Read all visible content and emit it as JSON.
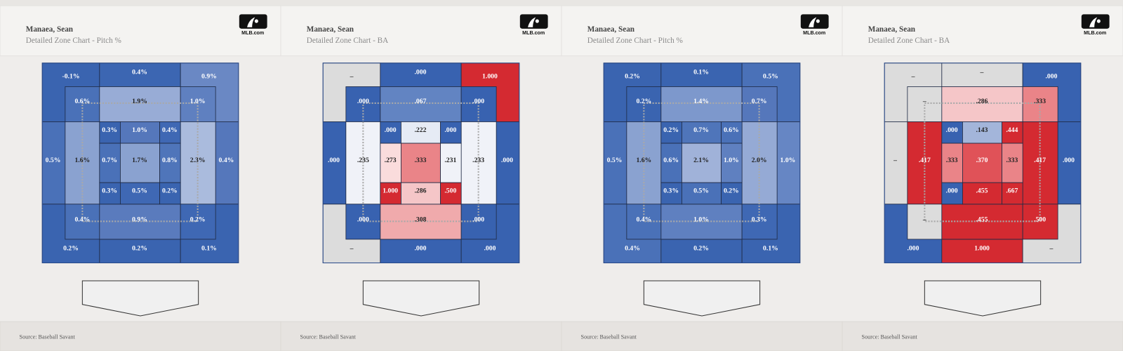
{
  "panels": [
    {
      "name": "Manaea, Sean",
      "subtitle": "Detailed Zone Chart - Pitch %",
      "logo": "MLB.com",
      "source": "Source: Baseball Savant",
      "cells": [
        {
          "label": "-0.1%",
          "color": "#3a64b0"
        },
        {
          "label": "0.4%",
          "color": "#3c66b2"
        },
        {
          "label": "0.9%",
          "color": "#6a88c4"
        },
        {
          "label": "0.5%",
          "color": "#4a71b8"
        },
        {
          "label": "0.4%",
          "color": "#5577bb"
        },
        {
          "label": "0.2%",
          "color": "#3a64b0"
        },
        {
          "label": "0.2%",
          "color": "#3a64b0"
        },
        {
          "label": "0.1%",
          "color": "#3a64b0"
        },
        {
          "label": "0.6%",
          "color": "#4a71b8"
        },
        {
          "label": "1.9%",
          "color": "#98acd6"
        },
        {
          "label": "1.0%",
          "color": "#5f80c0"
        },
        {
          "label": "1.6%",
          "color": "#8aa2d0"
        },
        {
          "label": "2.3%",
          "color": "#aabbdd"
        },
        {
          "label": "0.4%",
          "color": "#4a71b8"
        },
        {
          "label": "0.9%",
          "color": "#5a7bbd"
        },
        {
          "label": "0.2%",
          "color": "#3f68b4"
        },
        {
          "label": "0.3%",
          "color": "#3a64b0"
        },
        {
          "label": "1.0%",
          "color": "#5577bb"
        },
        {
          "label": "0.4%",
          "color": "#3f68b4"
        },
        {
          "label": "0.7%",
          "color": "#4a71b8"
        },
        {
          "label": "1.7%",
          "color": "#8aa2d0"
        },
        {
          "label": "0.8%",
          "color": "#4f75ba"
        },
        {
          "label": "0.3%",
          "color": "#3a64b0"
        },
        {
          "label": "0.5%",
          "color": "#3f68b4"
        },
        {
          "label": "0.2%",
          "color": "#3a64b0"
        }
      ]
    },
    {
      "name": "Manaea, Sean",
      "subtitle": "Detailed Zone Chart - BA",
      "logo": "MLB.com",
      "source": "Source: Baseball Savant",
      "cells": [
        {
          "label": "–",
          "color": "#dcdcdc"
        },
        {
          "label": ".000",
          "color": "#3862b0"
        },
        {
          "label": "1.000",
          "color": "#d42a31"
        },
        {
          "label": ".000",
          "color": "#3862b0"
        },
        {
          "label": ".000",
          "color": "#3862b0"
        },
        {
          "label": "–",
          "color": "#dcdcdc"
        },
        {
          "label": ".000",
          "color": "#3862b0"
        },
        {
          "label": ".000",
          "color": "#3862b0"
        },
        {
          "label": ".000",
          "color": "#3862b0"
        },
        {
          "label": ".067",
          "color": "#6284c2"
        },
        {
          "label": ".000",
          "color": "#3862b0"
        },
        {
          "label": ".235",
          "color": "#f0f2f8"
        },
        {
          "label": ".233",
          "color": "#f0f2f8"
        },
        {
          "label": ".000",
          "color": "#3862b0"
        },
        {
          "label": ".308",
          "color": "#f0aaac"
        },
        {
          "label": ".000",
          "color": "#3862b0"
        },
        {
          "label": ".000",
          "color": "#3862b0"
        },
        {
          "label": ".222",
          "color": "#e6ebf5"
        },
        {
          "label": ".000",
          "color": "#3862b0"
        },
        {
          "label": ".273",
          "color": "#fadcdc"
        },
        {
          "label": ".333",
          "color": "#ea8488"
        },
        {
          "label": ".231",
          "color": "#f0f2f8"
        },
        {
          "label": "1.000",
          "color": "#d42a31"
        },
        {
          "label": ".286",
          "color": "#f5c6c8"
        },
        {
          "label": ".500",
          "color": "#d42a31"
        }
      ]
    },
    {
      "name": "Manaea, Sean",
      "subtitle": "Detailed Zone Chart - Pitch %",
      "logo": "MLB.com",
      "source": "Source: Baseball Savant",
      "cells": [
        {
          "label": "0.2%",
          "color": "#3a64b0"
        },
        {
          "label": "0.1%",
          "color": "#3a64b0"
        },
        {
          "label": "0.5%",
          "color": "#4a71b8"
        },
        {
          "label": "0.5%",
          "color": "#4a71b8"
        },
        {
          "label": "1.0%",
          "color": "#6686c4"
        },
        {
          "label": "0.4%",
          "color": "#4a71b8"
        },
        {
          "label": "0.2%",
          "color": "#3a64b0"
        },
        {
          "label": "0.1%",
          "color": "#3a64b0"
        },
        {
          "label": "0.2%",
          "color": "#3a64b0"
        },
        {
          "label": "1.4%",
          "color": "#7d98cc"
        },
        {
          "label": "0.7%",
          "color": "#5577bb"
        },
        {
          "label": "1.6%",
          "color": "#8aa2d0"
        },
        {
          "label": "2.0%",
          "color": "#95aad5"
        },
        {
          "label": "0.4%",
          "color": "#4a71b8"
        },
        {
          "label": "1.0%",
          "color": "#5f80c0"
        },
        {
          "label": "0.3%",
          "color": "#3f68b4"
        },
        {
          "label": "0.2%",
          "color": "#3a64b0"
        },
        {
          "label": "0.7%",
          "color": "#4f75ba"
        },
        {
          "label": "0.6%",
          "color": "#4a71b8"
        },
        {
          "label": "0.6%",
          "color": "#4a71b8"
        },
        {
          "label": "2.1%",
          "color": "#a0b2d9"
        },
        {
          "label": "1.0%",
          "color": "#5f80c0"
        },
        {
          "label": "0.3%",
          "color": "#3a64b0"
        },
        {
          "label": "0.5%",
          "color": "#4a71b8"
        },
        {
          "label": "0.2%",
          "color": "#3a64b0"
        }
      ]
    },
    {
      "name": "Manaea, Sean",
      "subtitle": "Detailed Zone Chart - BA",
      "logo": "MLB.com",
      "source": "Source: Baseball Savant",
      "cells": [
        {
          "label": "–",
          "color": "#dcdcdc"
        },
        {
          "label": "–",
          "color": "#dcdcdc"
        },
        {
          "label": ".000",
          "color": "#3862b0"
        },
        {
          "label": "–",
          "color": "#dcdcdc"
        },
        {
          "label": ".000",
          "color": "#3862b0"
        },
        {
          "label": ".000",
          "color": "#3862b0"
        },
        {
          "label": "1.000",
          "color": "#d42a31"
        },
        {
          "label": "–",
          "color": "#dcdcdc"
        },
        {
          "label": "–",
          "color": "#dcdcdc"
        },
        {
          "label": ".286",
          "color": "#f5c6c8"
        },
        {
          "label": ".333",
          "color": "#ea8488"
        },
        {
          "label": ".417",
          "color": "#d42a31"
        },
        {
          "label": ".417",
          "color": "#d42a31"
        },
        {
          "label": "–",
          "color": "#dcdcdc"
        },
        {
          "label": ".455",
          "color": "#d42a31"
        },
        {
          "label": ".500",
          "color": "#d42a31"
        },
        {
          "label": ".000",
          "color": "#3862b0"
        },
        {
          "label": ".143",
          "color": "#a3b5da"
        },
        {
          "label": ".444",
          "color": "#d42a31"
        },
        {
          "label": ".333",
          "color": "#ea8488"
        },
        {
          "label": ".370",
          "color": "#e05258"
        },
        {
          "label": ".333",
          "color": "#ea8488"
        },
        {
          "label": ".000",
          "color": "#3862b0"
        },
        {
          "label": ".455",
          "color": "#d42a31"
        },
        {
          "label": ".667",
          "color": "#d42a31"
        }
      ]
    }
  ]
}
